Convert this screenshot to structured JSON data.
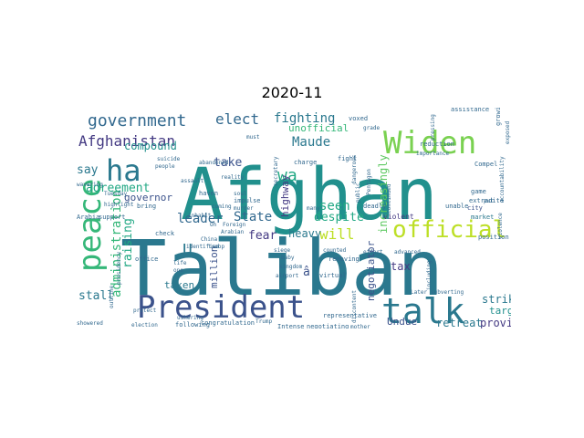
{
  "title": "2020-11",
  "chart_data": {
    "type": "wordcloud",
    "title": "2020-11",
    "words": [
      {
        "text": "Afghan",
        "color": "#21908d"
      },
      {
        "text": "Taliban",
        "color": "#2a788e"
      },
      {
        "text": "President",
        "color": "#3b528b"
      },
      {
        "text": "talk",
        "color": "#2a788e"
      },
      {
        "text": "Widen",
        "color": "#7ad151"
      },
      {
        "text": "peace",
        "color": "#35b779"
      },
      {
        "text": "official",
        "color": "#bddf26"
      },
      {
        "text": "government",
        "color": "#31688e"
      },
      {
        "text": "Afghanistan",
        "color": "#443a83"
      },
      {
        "text": "ha",
        "color": "#2a788e"
      },
      {
        "text": "administration",
        "color": "#35b779"
      },
      {
        "text": "elect",
        "color": "#31688e"
      },
      {
        "text": "fighting",
        "color": "#2a788e"
      },
      {
        "text": "Maude",
        "color": "#2a788e"
      },
      {
        "text": "wa",
        "color": "#22a884"
      },
      {
        "text": "increasingly",
        "color": "#5ec962"
      },
      {
        "text": "agreement",
        "color": "#22a884"
      },
      {
        "text": "take",
        "color": "#3b528b"
      },
      {
        "text": "State",
        "color": "#31688e"
      },
      {
        "text": "leader",
        "color": "#31688e"
      },
      {
        "text": "say",
        "color": "#2a788e"
      },
      {
        "text": "will",
        "color": "#bddf26"
      },
      {
        "text": "seen",
        "color": "#22a884"
      },
      {
        "text": "despite",
        "color": "#22a884"
      },
      {
        "text": "fear",
        "color": "#443a83"
      },
      {
        "text": "heavy",
        "color": "#2a788e"
      },
      {
        "text": "raising",
        "color": "#22a884"
      },
      {
        "text": "compound",
        "color": "#21908d"
      },
      {
        "text": "governor",
        "color": "#3b528b"
      },
      {
        "text": "unofficial",
        "color": "#35b779"
      },
      {
        "text": "highway",
        "color": "#443a83"
      },
      {
        "text": "negotiator",
        "color": "#3b528b"
      },
      {
        "text": "million",
        "color": "#3b528b"
      },
      {
        "text": "taken",
        "color": "#2a788e"
      },
      {
        "text": "stall",
        "color": "#2a788e"
      },
      {
        "text": "tax",
        "color": "#443a83"
      },
      {
        "text": "strike",
        "color": "#2a788e"
      },
      {
        "text": "target",
        "color": "#21908d"
      },
      {
        "text": "province",
        "color": "#443a83"
      },
      {
        "text": "retreat",
        "color": "#2a788e"
      },
      {
        "text": "Undue",
        "color": "#3b528b"
      },
      {
        "text": "U",
        "color": "#2a788e"
      },
      {
        "text": "â",
        "color": "#3b528b"
      },
      {
        "text": "assistance",
        "color": "#31688e"
      },
      {
        "text": "violent",
        "color": "#443a83"
      },
      {
        "text": "city",
        "color": "#3b528b"
      },
      {
        "text": "market",
        "color": "#2a788e"
      },
      {
        "text": "game",
        "color": "#31688e"
      },
      {
        "text": "Compel",
        "color": "#31688e"
      },
      {
        "text": "reduction",
        "color": "#31688e"
      },
      {
        "text": "charge",
        "color": "#31688e"
      },
      {
        "text": "fight",
        "color": "#31688e"
      },
      {
        "text": "voxed",
        "color": "#31688e"
      },
      {
        "text": "grade",
        "color": "#31688e"
      },
      {
        "text": "Arabia",
        "color": "#31688e"
      },
      {
        "text": "support",
        "color": "#31688e"
      },
      {
        "text": "Tuesday",
        "color": "#31688e"
      },
      {
        "text": "wavering",
        "color": "#31688e"
      },
      {
        "text": "assault",
        "color": "#31688e"
      },
      {
        "text": "reality",
        "color": "#31688e"
      },
      {
        "text": "haven",
        "color": "#31688e"
      },
      {
        "text": "impulse",
        "color": "#31688e"
      },
      {
        "text": "murder",
        "color": "#31688e"
      },
      {
        "text": "inhabit",
        "color": "#31688e"
      },
      {
        "text": "coming",
        "color": "#31688e"
      },
      {
        "text": "abandoned",
        "color": "#31688e"
      },
      {
        "text": "Foreign",
        "color": "#31688e"
      },
      {
        "text": "Arabian",
        "color": "#31688e"
      },
      {
        "text": "China",
        "color": "#31688e"
      },
      {
        "text": "troop",
        "color": "#31688e"
      },
      {
        "text": "siege",
        "color": "#31688e"
      },
      {
        "text": "kingdom",
        "color": "#31688e"
      },
      {
        "text": "baby",
        "color": "#31688e"
      },
      {
        "text": "airport",
        "color": "#31688e"
      },
      {
        "text": "virtual",
        "color": "#31688e"
      },
      {
        "text": "many",
        "color": "#31688e"
      },
      {
        "text": "check",
        "color": "#31688e"
      },
      {
        "text": "office",
        "color": "#31688e"
      },
      {
        "text": "protect",
        "color": "#31688e"
      },
      {
        "text": "election",
        "color": "#31688e"
      },
      {
        "text": "showered",
        "color": "#31688e"
      },
      {
        "text": "following",
        "color": "#31688e"
      },
      {
        "text": "congratulation",
        "color": "#31688e"
      },
      {
        "text": "Trump",
        "color": "#31688e"
      },
      {
        "text": "Intense",
        "color": "#31688e"
      },
      {
        "text": "negotiating",
        "color": "#31688e"
      },
      {
        "text": "mother",
        "color": "#31688e"
      },
      {
        "text": "representative",
        "color": "#31688e"
      },
      {
        "text": "ushering",
        "color": "#31688e"
      },
      {
        "text": "removing",
        "color": "#31688e"
      },
      {
        "text": "counted",
        "color": "#31688e"
      },
      {
        "text": "Later",
        "color": "#31688e"
      },
      {
        "text": "subverting",
        "color": "#31688e"
      },
      {
        "text": "unable",
        "color": "#31688e"
      },
      {
        "text": "extradite",
        "color": "#31688e"
      },
      {
        "text": "position",
        "color": "#31688e"
      },
      {
        "text": "deadly",
        "color": "#31688e"
      },
      {
        "text": "effort",
        "color": "#31688e"
      },
      {
        "text": "bring",
        "color": "#31688e"
      },
      {
        "text": "highlight",
        "color": "#31688e"
      },
      {
        "text": "life",
        "color": "#31688e"
      },
      {
        "text": "one",
        "color": "#31688e"
      },
      {
        "text": "identified",
        "color": "#31688e"
      },
      {
        "text": "Oh",
        "color": "#31688e"
      },
      {
        "text": "growing",
        "color": "#31688e"
      },
      {
        "text": "put",
        "color": "#31688e"
      },
      {
        "text": "exposed",
        "color": "#31688e"
      },
      {
        "text": "accountability",
        "color": "#31688e"
      },
      {
        "text": "violence",
        "color": "#31688e"
      },
      {
        "text": "continued",
        "color": "#31688e"
      },
      {
        "text": "including",
        "color": "#31688e"
      },
      {
        "text": "discontent",
        "color": "#31688e"
      },
      {
        "text": "secretary",
        "color": "#31688e"
      },
      {
        "text": "people",
        "color": "#31688e"
      },
      {
        "text": "soul",
        "color": "#31688e"
      },
      {
        "text": "must",
        "color": "#31688e"
      },
      {
        "text": "pressing",
        "color": "#31688e"
      },
      {
        "text": "Pentagon",
        "color": "#31688e"
      },
      {
        "text": "public",
        "color": "#31688e"
      },
      {
        "text": "importance",
        "color": "#31688e"
      },
      {
        "text": "advanced",
        "color": "#31688e"
      },
      {
        "text": "suicide",
        "color": "#31688e"
      },
      {
        "text": "presidency",
        "color": "#31688e"
      },
      {
        "text": "outline",
        "color": "#31688e"
      },
      {
        "text": "dangerous",
        "color": "#31688e"
      }
    ]
  }
}
